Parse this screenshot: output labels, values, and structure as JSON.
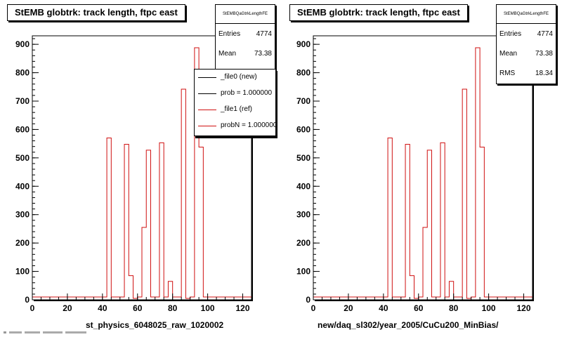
{
  "chart_data": [
    {
      "type": "bar",
      "title": "StEMB globtrk: track length, ftpc east",
      "xlabel": "st_physics_6048025_raw_1020002",
      "xlim": [
        0,
        125
      ],
      "ylim": [
        0,
        930
      ],
      "x_ticks": [
        0,
        20,
        40,
        60,
        80,
        100,
        120
      ],
      "y_ticks": [
        0,
        100,
        200,
        300,
        400,
        500,
        600,
        700,
        800,
        900
      ],
      "stats": {
        "name": "StEMBQaGtrkLengthFE",
        "entries": "4774",
        "mean": "73.38"
      },
      "legend": [
        {
          "label": "_file0 (new)",
          "color": "#000000"
        },
        {
          "label": "prob = 1.000000",
          "color": "#000000"
        },
        {
          "label": "_file1 (ref)",
          "color": "#d01010"
        },
        {
          "label": "probN = 1.000000",
          "color": "#d01010"
        }
      ],
      "bin_width": 2.5,
      "series": [
        {
          "name": "_file1 (ref)",
          "color": "#d01010",
          "x": [
            42.5,
            52.5,
            55,
            57.5,
            62.5,
            65,
            70,
            72.5,
            77.5,
            85,
            87.5,
            92.5,
            95
          ],
          "values": [
            570,
            548,
            85,
            5,
            255,
            527,
            10,
            553,
            65,
            742,
            5,
            888,
            538
          ]
        }
      ]
    },
    {
      "type": "bar",
      "title": "StEMB globtrk: track length, ftpc east",
      "xlabel": "new/daq_sl302/year_2005/CuCu200_MinBias/",
      "xlim": [
        0,
        125
      ],
      "ylim": [
        0,
        930
      ],
      "x_ticks": [
        0,
        20,
        40,
        60,
        80,
        100,
        120
      ],
      "y_ticks": [
        0,
        100,
        200,
        300,
        400,
        500,
        600,
        700,
        800,
        900
      ],
      "stats": {
        "name": "StEMBQaGtrkLengthFE",
        "entries": "4774",
        "mean": "73.38",
        "rms": "18.34"
      },
      "bin_width": 2.5,
      "series": [
        {
          "color": "#d01010",
          "x": [
            42.5,
            52.5,
            55,
            57.5,
            62.5,
            65,
            70,
            72.5,
            77.5,
            85,
            87.5,
            92.5,
            95
          ],
          "values": [
            570,
            548,
            85,
            5,
            255,
            527,
            10,
            553,
            65,
            742,
            5,
            888,
            538
          ]
        }
      ]
    }
  ],
  "labels": {
    "entries": "Entries",
    "mean": "Mean",
    "rms": "RMS"
  }
}
